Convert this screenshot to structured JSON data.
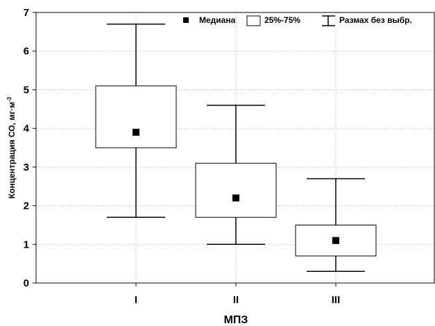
{
  "chart_data": {
    "type": "boxplot",
    "xlabel": "МПЗ",
    "ylabel": "Концентрация  СО, мг·м",
    "ylabel_superscript": "-3",
    "categories": [
      "I",
      "II",
      "III"
    ],
    "yticks": [
      "0",
      "1",
      "2",
      "3",
      "4",
      "5",
      "6",
      "7"
    ],
    "ylim": [
      0,
      7
    ],
    "grid": true,
    "legend_position": "top-right",
    "legend": {
      "median": "Медиана",
      "box": "25%-75%",
      "whisker": "Размах без выбр."
    },
    "boxes": [
      {
        "category": "I",
        "min": 1.7,
        "q1": 3.5,
        "median": 3.9,
        "q3": 5.1,
        "max": 6.7
      },
      {
        "category": "II",
        "min": 1.0,
        "q1": 1.7,
        "median": 2.2,
        "q3": 3.1,
        "max": 4.6
      },
      {
        "category": "III",
        "min": 0.3,
        "q1": 0.7,
        "median": 1.1,
        "q3": 1.5,
        "max": 2.7
      }
    ]
  }
}
